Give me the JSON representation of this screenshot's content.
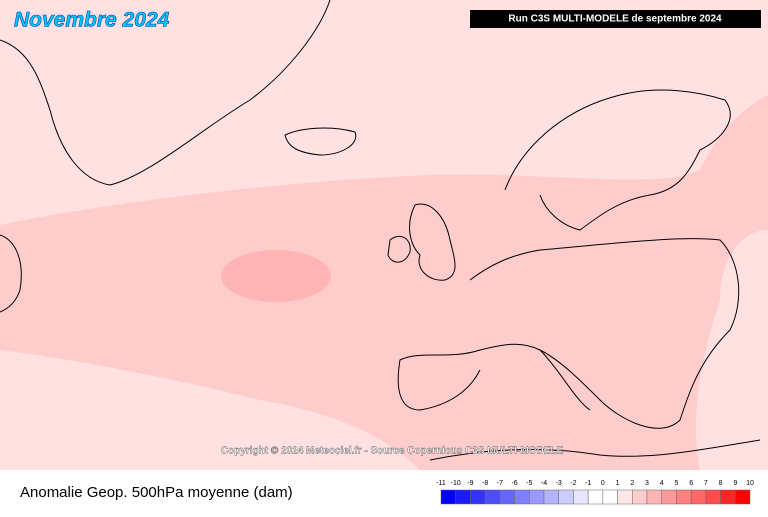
{
  "title": "Novembre 2024",
  "run_label": "Run C3S MULTI-MODELE de septembre 2024",
  "copyright": "Copyright © 2024 Meteociel.fr - Source Copernicus C3S MULTI-MODELE",
  "caption": "Anomalie Geop. 500hPa moyenne (dam)",
  "colorbar": {
    "ticks": [
      -11,
      -10,
      -9,
      -8,
      -7,
      -6,
      -5,
      -4,
      -3,
      -2,
      -1,
      0,
      1,
      2,
      3,
      4,
      5,
      6,
      7,
      8,
      9,
      10
    ],
    "colors": [
      "#0000ff",
      "#1a1aff",
      "#3333ff",
      "#4d4dff",
      "#6666ff",
      "#8080ff",
      "#9999ff",
      "#b3b3ff",
      "#ccccff",
      "#e6e6ff",
      "#ffffff",
      "#ffffff",
      "#ffe6e6",
      "#ffcccc",
      "#ffb3b3",
      "#ff9999",
      "#ff8080",
      "#ff6666",
      "#ff4d4d",
      "#ff2626",
      "#ff0000"
    ]
  }
}
